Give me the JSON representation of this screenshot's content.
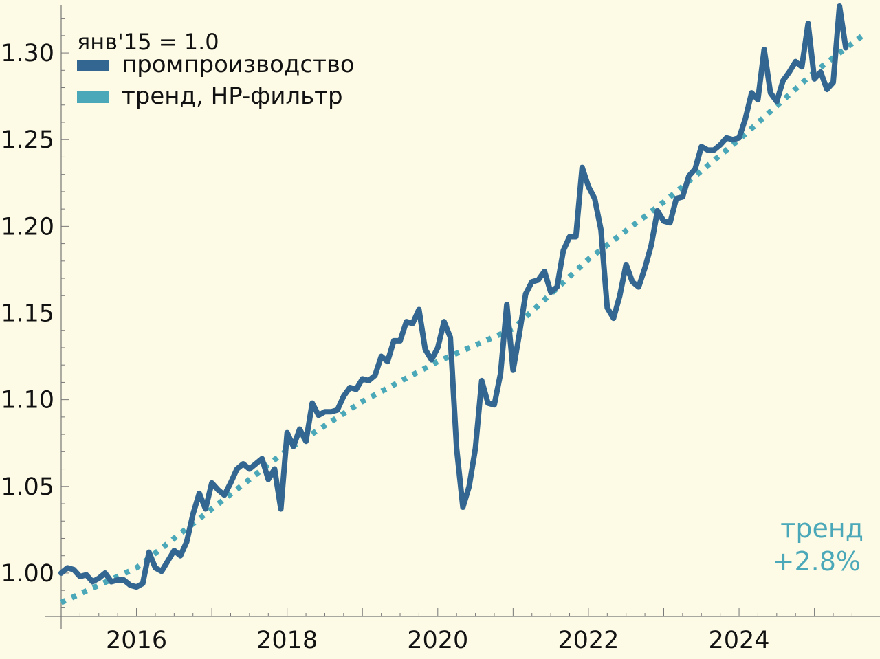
{
  "chart_data": {
    "type": "line",
    "x_start": "2015-01",
    "x_step": "month",
    "xlim": [
      2015.0,
      2025.67
    ],
    "ylim": [
      0.975,
      1.325
    ],
    "xticks": [
      2016,
      2018,
      2020,
      2022,
      2024
    ],
    "xtick_labels": [
      "2016",
      "2018",
      "2020",
      "2022",
      "2024"
    ],
    "yticks": [
      1.0,
      1.05,
      1.1,
      1.15,
      1.2,
      1.25,
      1.3
    ],
    "ytick_labels": [
      "1.00",
      "1.05",
      "1.10",
      "1.15",
      "1.20",
      "1.25",
      "1.30"
    ],
    "legend_title": "янв'15 = 1.0",
    "legend_position": "top-left",
    "grid": false,
    "series": [
      {
        "name": "промпроизводство",
        "style": "solid",
        "color": "#336690",
        "values": [
          1.0,
          1.003,
          1.002,
          0.998,
          0.999,
          0.995,
          0.997,
          1.0,
          0.995,
          0.996,
          0.996,
          0.993,
          0.992,
          0.994,
          1.012,
          1.003,
          1.001,
          1.007,
          1.013,
          1.01,
          1.018,
          1.034,
          1.046,
          1.037,
          1.052,
          1.048,
          1.045,
          1.052,
          1.06,
          1.063,
          1.06,
          1.063,
          1.066,
          1.054,
          1.06,
          1.037,
          1.081,
          1.073,
          1.083,
          1.076,
          1.098,
          1.091,
          1.093,
          1.093,
          1.094,
          1.102,
          1.107,
          1.106,
          1.112,
          1.111,
          1.114,
          1.125,
          1.122,
          1.134,
          1.134,
          1.145,
          1.144,
          1.152,
          1.129,
          1.123,
          1.13,
          1.145,
          1.136,
          1.072,
          1.038,
          1.05,
          1.072,
          1.111,
          1.098,
          1.097,
          1.115,
          1.155,
          1.117,
          1.138,
          1.161,
          1.168,
          1.169,
          1.174,
          1.162,
          1.165,
          1.186,
          1.194,
          1.194,
          1.234,
          1.223,
          1.216,
          1.198,
          1.153,
          1.147,
          1.16,
          1.178,
          1.168,
          1.165,
          1.176,
          1.189,
          1.209,
          1.203,
          1.202,
          1.216,
          1.217,
          1.229,
          1.233,
          1.246,
          1.244,
          1.244,
          1.247,
          1.251,
          1.25,
          1.251,
          1.262,
          1.277,
          1.273,
          1.302,
          1.277,
          1.272,
          1.284,
          1.289,
          1.295,
          1.292,
          1.317,
          1.285,
          1.289,
          1.279,
          1.283,
          1.327,
          1.303
        ]
      },
      {
        "name": "тренд, HP-фильтр",
        "style": "dotted",
        "color": "#4aa8b8",
        "x": [
          2015.0,
          2016.0,
          2017.0,
          2018.0,
          2019.0,
          2020.0,
          2021.0,
          2022.0,
          2023.0,
          2024.0,
          2025.0,
          2025.67
        ],
        "values": [
          0.983,
          1.003,
          1.037,
          1.071,
          1.099,
          1.122,
          1.141,
          1.181,
          1.214,
          1.25,
          1.289,
          1.311
        ]
      }
    ],
    "annotation": {
      "line1": "тренд",
      "line2": "+2.8%",
      "position": "bottom-right",
      "color": "#4aa8b8"
    }
  }
}
